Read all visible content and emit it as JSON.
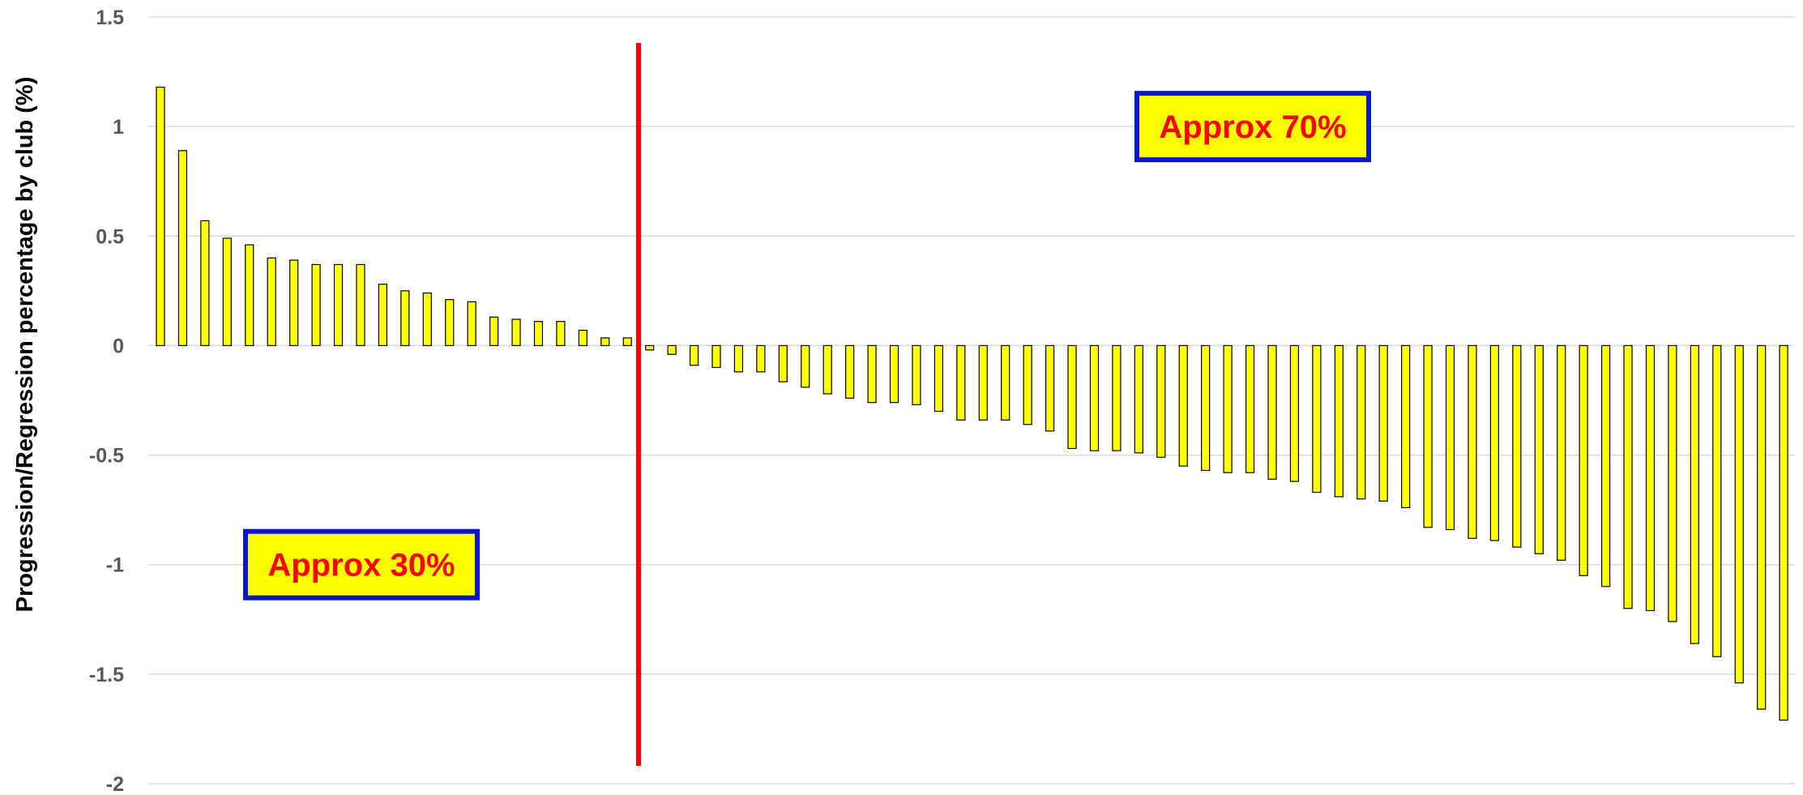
{
  "chart_data": {
    "type": "bar",
    "title": "",
    "xlabel": "",
    "ylabel": "Progression/Regression percentage by club (%)",
    "ylim": [
      -2,
      1.5
    ],
    "yticks": [
      1.5,
      1,
      0.5,
      0,
      -0.5,
      -1,
      -1.5,
      -2
    ],
    "ytick_labels": [
      "1.5",
      "1",
      "0.5",
      "0",
      "-0.5",
      "-1",
      "-1.5",
      "-2"
    ],
    "grid": true,
    "legend": "none",
    "colors": {
      "bar_fill": "#ffff00",
      "bar_stroke": "#000000",
      "divider": "#ff0000",
      "box_border": "#0a18c8",
      "annot_text": "#ff0000",
      "grid": "#d9d9d9"
    },
    "values": [
      1.18,
      0.89,
      0.57,
      0.49,
      0.46,
      0.4,
      0.39,
      0.37,
      0.37,
      0.37,
      0.28,
      0.25,
      0.24,
      0.21,
      0.2,
      0.13,
      0.12,
      0.11,
      0.11,
      0.07,
      0.035,
      0.035,
      -0.02,
      -0.04,
      -0.09,
      -0.1,
      -0.12,
      -0.12,
      -0.165,
      -0.19,
      -0.22,
      -0.24,
      -0.26,
      -0.26,
      -0.27,
      -0.3,
      -0.34,
      -0.34,
      -0.34,
      -0.36,
      -0.39,
      -0.47,
      -0.48,
      -0.48,
      -0.49,
      -0.51,
      -0.55,
      -0.57,
      -0.58,
      -0.58,
      -0.61,
      -0.62,
      -0.67,
      -0.69,
      -0.7,
      -0.71,
      -0.74,
      -0.83,
      -0.84,
      -0.88,
      -0.89,
      -0.92,
      -0.95,
      -0.98,
      -1.05,
      -1.1,
      -1.2,
      -1.21,
      -1.26,
      -1.36,
      -1.42,
      -1.54,
      -1.66,
      -1.71
    ],
    "divider_after_index": 21,
    "annotations": [
      {
        "text": "Approx 30%",
        "region": "left",
        "y": -1.0
      },
      {
        "text": "Approx 70%",
        "region": "right",
        "y": 1.0
      }
    ]
  }
}
